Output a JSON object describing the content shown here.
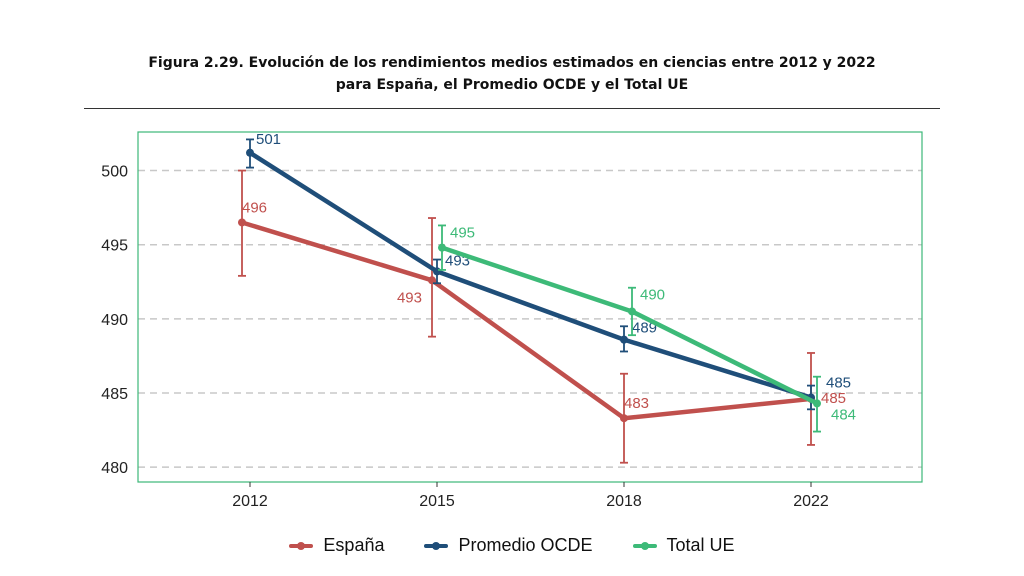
{
  "title_line1": "Figura 2.29. Evolución de los rendimientos medios estimados en ciencias entre 2012 y 2022",
  "title_line2": "para España, el Promedio OCDE y el Total UE",
  "colors": {
    "frame": "#3cb878",
    "grid": "#c8c8c8"
  },
  "chart_data": {
    "type": "line",
    "categories": [
      "2012",
      "2015",
      "2018",
      "2022"
    ],
    "ylim": [
      479,
      502.6
    ],
    "yticks": [
      480,
      485,
      490,
      495,
      500
    ],
    "grid": "horizontal dashed",
    "legend_position": "bottom",
    "series": [
      {
        "name": "España",
        "color": "#c0504d",
        "values": [
          496.5,
          492.6,
          483.3,
          484.6
        ],
        "err_low": [
          492.9,
          488.8,
          480.3,
          481.5
        ],
        "err_high": [
          500.0,
          496.8,
          486.3,
          487.7
        ],
        "labels": [
          "496",
          "493",
          "483",
          "485"
        ]
      },
      {
        "name": "Promedio OCDE",
        "color": "#1f4e79",
        "values": [
          501.2,
          493.2,
          488.6,
          484.7
        ],
        "err_low": [
          500.2,
          492.4,
          487.8,
          483.9
        ],
        "err_high": [
          502.1,
          494.0,
          489.5,
          485.5
        ],
        "labels": [
          "501",
          "493",
          "489",
          "485"
        ]
      },
      {
        "name": "Total UE",
        "color": "#3dba78",
        "values": [
          null,
          494.8,
          490.5,
          484.3
        ],
        "err_low": [
          null,
          493.3,
          488.9,
          482.4
        ],
        "err_high": [
          null,
          496.3,
          492.1,
          486.1
        ],
        "labels": [
          "",
          "495",
          "490",
          "484"
        ]
      }
    ]
  }
}
